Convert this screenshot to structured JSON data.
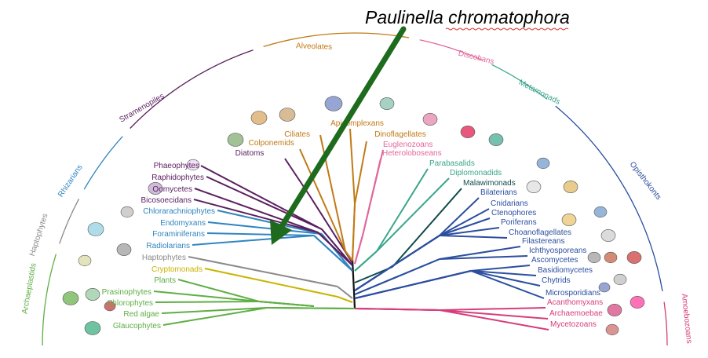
{
  "title": "Paulinella chromatophora",
  "supergroups": [
    {
      "name": "Archaeplastids",
      "color": "#5fae45"
    },
    {
      "name": "Haptophytes",
      "color": "#8a8a8a"
    },
    {
      "name": "Rhizarians",
      "color": "#2f85c0"
    },
    {
      "name": "Stramenopiles",
      "color": "#5a1f5f"
    },
    {
      "name": "Alveolates",
      "color": "#c17a16"
    },
    {
      "name": "Discobans",
      "color": "#e2679c"
    },
    {
      "name": "Metamonads",
      "color": "#3aa58c"
    },
    {
      "name": "Opisthokonts",
      "color": "#2b4ea0"
    },
    {
      "name": "Amoebozoans",
      "color": "#d63d7a"
    }
  ],
  "taxa": {
    "left": [
      {
        "name": "Glaucophytes",
        "color": "#5fae45"
      },
      {
        "name": "Red algae",
        "color": "#5fae45"
      },
      {
        "name": "Chlorophytes",
        "color": "#5fae45"
      },
      {
        "name": "Prasinophytes",
        "color": "#5fae45"
      },
      {
        "name": "Plants",
        "color": "#5fae45"
      },
      {
        "name": "Cryptomonads",
        "color": "#c9b400"
      },
      {
        "name": "Haptophytes",
        "color": "#8a8a8a"
      },
      {
        "name": "Radiolarians",
        "color": "#2f85c0"
      },
      {
        "name": "Foraminiferans",
        "color": "#2f85c0"
      },
      {
        "name": "Endomyxans",
        "color": "#2f85c0"
      },
      {
        "name": "Chlorarachniophytes",
        "color": "#2f85c0"
      },
      {
        "name": "Bicosoecidans",
        "color": "#5a1f5f"
      },
      {
        "name": "Oomycetes",
        "color": "#5a1f5f"
      },
      {
        "name": "Raphidophytes",
        "color": "#5a1f5f"
      },
      {
        "name": "Phaeophytes",
        "color": "#5a1f5f"
      },
      {
        "name": "Diatoms",
        "color": "#5a1f5f"
      },
      {
        "name": "Colponemids",
        "color": "#c17a16"
      },
      {
        "name": "Ciliates",
        "color": "#c17a16"
      },
      {
        "name": "Apicomplexans",
        "color": "#c17a16"
      },
      {
        "name": "Dinoflagellates",
        "color": "#c17a16"
      }
    ],
    "right": [
      {
        "name": "Euglenozoans",
        "color": "#e2679c"
      },
      {
        "name": "Heteroloboseans",
        "color": "#e2679c"
      },
      {
        "name": "Parabasalids",
        "color": "#3aa58c"
      },
      {
        "name": "Diplomonadids",
        "color": "#3aa58c"
      },
      {
        "name": "Malawimonads",
        "color": "#0f4a4a"
      },
      {
        "name": "Bilaterians",
        "color": "#2b4ea0"
      },
      {
        "name": "Cnidarians",
        "color": "#2b4ea0"
      },
      {
        "name": "Ctenophores",
        "color": "#2b4ea0"
      },
      {
        "name": "Poriferans",
        "color": "#2b4ea0"
      },
      {
        "name": "Choanoflagellates",
        "color": "#2b4ea0"
      },
      {
        "name": "Filastereans",
        "color": "#2b4ea0"
      },
      {
        "name": "Ichthyosporeans",
        "color": "#2b4ea0"
      },
      {
        "name": "Ascomycetes",
        "color": "#2b4ea0"
      },
      {
        "name": "Basidiomycetes",
        "color": "#2b4ea0"
      },
      {
        "name": "Chytrids",
        "color": "#2b4ea0"
      },
      {
        "name": "Microsporidians",
        "color": "#2b4ea0"
      },
      {
        "name": "Acanthomyxans",
        "color": "#d63d7a"
      },
      {
        "name": "Archaemoebae",
        "color": "#d63d7a"
      },
      {
        "name": "Mycetozoans",
        "color": "#d63d7a"
      }
    ]
  },
  "arrow": {
    "color": "#1e6b1e",
    "target": "Radiolarians"
  }
}
